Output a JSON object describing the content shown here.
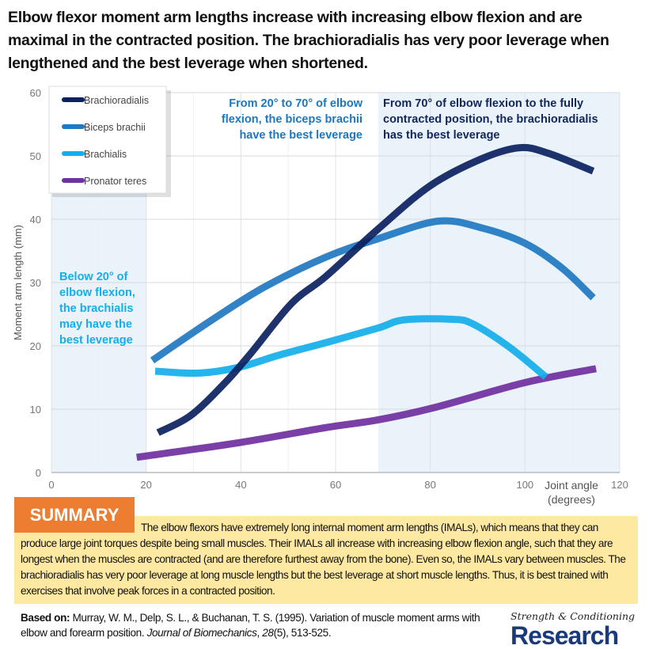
{
  "title": "Elbow flexor moment arm lengths increase with increasing elbow flexion and are maximal in the contracted position. The brachioradialis has very poor leverage when lengthened and the best leverage when shortened.",
  "chart_data": {
    "type": "line",
    "xlabel": "Joint angle (degrees)",
    "xlabel_lines": [
      "Joint angle",
      "(degrees)"
    ],
    "ylabel": "Moment arm length (mm)",
    "xlim": [
      0,
      120
    ],
    "ylim": [
      0,
      60
    ],
    "xticks": [
      0,
      20,
      40,
      60,
      80,
      100,
      120
    ],
    "yticks": [
      0,
      10,
      20,
      30,
      40,
      50,
      60
    ],
    "grid": true,
    "legend_placement": "top-left",
    "shaded_regions": [
      [
        0,
        20
      ],
      [
        69,
        120
      ]
    ],
    "series": [
      {
        "name": "Brachioradialis",
        "color": "#0b2260",
        "x": [
          22.5,
          29.4,
          36.7,
          42.3,
          50.7,
          58,
          68.9,
          80,
          91,
          98.9,
          105,
          114.4
        ],
        "y": [
          6.3,
          9,
          14.2,
          19,
          26.7,
          31,
          38.4,
          45.3,
          49.6,
          51.3,
          50.4,
          47.6
        ]
      },
      {
        "name": "Biceps brachii",
        "color": "#1f78c1",
        "x": [
          21.3,
          33.9,
          45,
          57.9,
          68.9,
          81.7,
          91,
          100,
          107.8,
          114.4
        ],
        "y": [
          17.7,
          24.1,
          29.3,
          34,
          36.9,
          39.7,
          38.6,
          36.2,
          32.3,
          27.6
        ]
      },
      {
        "name": "Brachialis",
        "color": "#14aeea",
        "x": [
          21.9,
          31.1,
          39.5,
          47.9,
          57.9,
          68.9,
          74.4,
          84.4,
          88.9,
          96.7,
          104.4
        ],
        "y": [
          16,
          15.7,
          16.6,
          18.5,
          20.5,
          22.8,
          24.1,
          24.2,
          23.5,
          19.8,
          15.1
        ]
      },
      {
        "name": "Pronator teres",
        "color": "#7030a0",
        "x": [
          18,
          39.5,
          58,
          68.9,
          81.1,
          100,
          115
        ],
        "y": [
          2.4,
          4.7,
          7.1,
          8.3,
          10.3,
          14.2,
          16.4
        ]
      }
    ],
    "annotations": [
      {
        "lines": [
          "From 20° to 70° of elbow",
          "flexion, the biceps brachii",
          "have the best leverage"
        ],
        "color": "#1a78c2"
      },
      {
        "lines": [
          "From 70° of elbow flexion to the fully",
          "contracted position, the brachioradialis",
          "has the best leverage"
        ],
        "color": "#12265e"
      },
      {
        "lines": [
          "Below 20° of",
          "elbow flexion,",
          "the brachialis",
          "may have the",
          "best leverage"
        ],
        "color": "#14aeea"
      }
    ]
  },
  "summary": {
    "label": "SUMMARY",
    "text": "The elbow flexors have extremely long internal moment arm lengths (IMALs), which means that they can produce large joint torques despite being small muscles. Their IMALs all increase with increasing elbow flexion angle, such that they are longest when the muscles are contracted (and are therefore furthest away from the bone). Even so, the IMALs vary between muscles. The brachioradialis has very poor leverage at long muscle lengths but the best leverage at short muscle lengths. Thus, it is best trained with exercises that involve peak forces in a contracted position."
  },
  "citation": {
    "label": "Based on:",
    "authors": " Murray, W. M., Delp, S. L., & Buchanan, T. S. (1995). Variation of muscle moment arms with elbow and forearm position. ",
    "journal": "Journal of Biomechanics",
    "sep": ", ",
    "volume": "28",
    "rest": "(5), 513-525."
  },
  "logo": {
    "line1": "Strength & Conditioning",
    "line2": "Research"
  }
}
